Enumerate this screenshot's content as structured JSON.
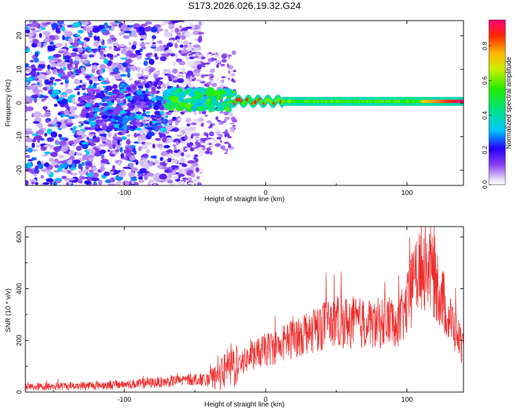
{
  "chart_data": [
    {
      "type": "heatmap",
      "title": "S173.2026.026.19.32.G24",
      "xlabel": "Height of straight line (km)",
      "ylabel": "Frequency (Hz)",
      "xlim": [
        -170,
        140
      ],
      "ylim": [
        -24.5,
        24.5
      ],
      "x_ticks": [
        -100,
        0,
        100
      ],
      "y_ticks": [
        -20,
        -10,
        0,
        10,
        20
      ],
      "colorbar": {
        "label": "Normalized spectral amplitude",
        "range": [
          0,
          0.95
        ],
        "ticks": [
          0.0,
          0.2,
          0.4,
          0.6,
          0.8
        ]
      },
      "grid": false,
      "features": [
        {
          "region": "scattered noise",
          "x_range": [
            -170,
            -45
          ],
          "frequency_range": [
            -24.5,
            24.5
          ],
          "amplitude": [
            0.05,
            0.35
          ]
        },
        {
          "region": "faint noise",
          "x_range": [
            -45,
            -22
          ],
          "frequency_range": [
            -15,
            15
          ],
          "amplitude": [
            0.02,
            0.15
          ]
        },
        {
          "region": "converging band",
          "x_range": [
            -70,
            -22
          ],
          "frequency_range": [
            -2,
            4
          ],
          "amplitude": [
            0.3,
            0.6
          ]
        },
        {
          "region": "narrow ridge",
          "x_range": [
            -22,
            140
          ],
          "frequency_center": 0.5,
          "frequency_width": 1.5,
          "amplitude": [
            0.5,
            0.95
          ]
        }
      ]
    },
    {
      "type": "line",
      "title": "",
      "xlabel": "Height of straight line (km)",
      "ylabel": "SNR (10 * v/v)",
      "xlim": [
        -170,
        140
      ],
      "ylim": [
        0,
        640
      ],
      "x_ticks": [
        -100,
        0,
        100
      ],
      "y_ticks": [
        0,
        200,
        400,
        600
      ],
      "grid": false,
      "series": [
        {
          "color": "#ee2a2a",
          "x": [
            -170,
            -150,
            -130,
            -110,
            -90,
            -70,
            -60,
            -50,
            -40,
            -35,
            -30,
            -25,
            -20,
            -15,
            -10,
            -5,
            0,
            10,
            20,
            30,
            40,
            50,
            60,
            70,
            80,
            90,
            95,
            100,
            105,
            110,
            115,
            120,
            125,
            130,
            135,
            140
          ],
          "y": [
            20,
            22,
            25,
            28,
            32,
            40,
            45,
            50,
            45,
            55,
            75,
            100,
            110,
            120,
            140,
            150,
            165,
            180,
            210,
            240,
            260,
            270,
            270,
            265,
            265,
            280,
            275,
            330,
            430,
            490,
            490,
            440,
            360,
            290,
            230,
            170
          ]
        }
      ]
    }
  ]
}
